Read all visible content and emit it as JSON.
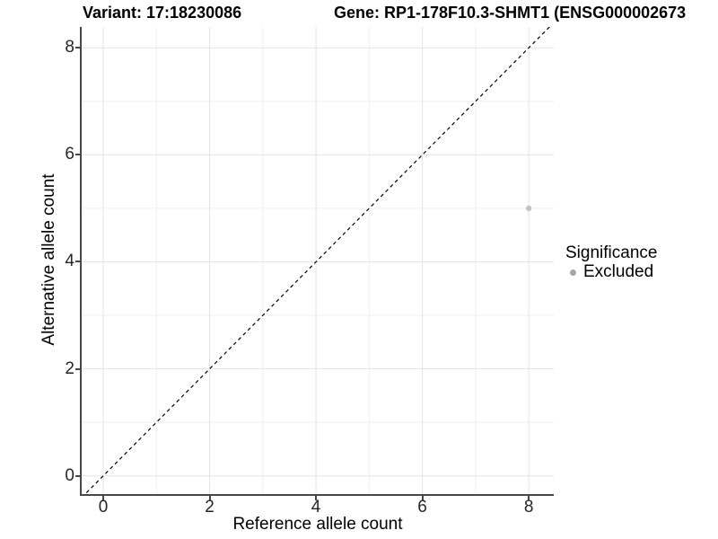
{
  "chart_data": {
    "type": "scatter",
    "titles": {
      "left": "Variant: 17:18230086",
      "right": "Gene: RP1-178F10.3-SHMT1 (ENSG000002673"
    },
    "xlabel": "Reference allele count",
    "ylabel": "Alternative allele count",
    "xticks": [
      0,
      2,
      4,
      6,
      8
    ],
    "yticks": [
      0,
      2,
      4,
      6,
      8
    ],
    "xticks_minor": [
      1,
      3,
      5,
      7
    ],
    "yticks_minor": [
      1,
      3,
      5,
      7
    ],
    "xlim": [
      -0.405,
      8.47
    ],
    "ylim": [
      -0.34,
      8.39
    ],
    "grid": true,
    "reference_line": {
      "type": "identity",
      "style": "dashed",
      "color": "#000000"
    },
    "series": [
      {
        "name": "Excluded",
        "color": "#c3c3c3",
        "points": [
          {
            "x": 8,
            "y": 5
          }
        ]
      }
    ],
    "legend": {
      "title": "Significance",
      "position": "right",
      "entries": [
        {
          "label": "Excluded",
          "color": "#a6a6a6"
        }
      ]
    },
    "colors": {
      "grid_major": "#e3e3e3",
      "grid_minor": "#efefef",
      "axis": "#474747",
      "tick_label": "#262626"
    }
  }
}
